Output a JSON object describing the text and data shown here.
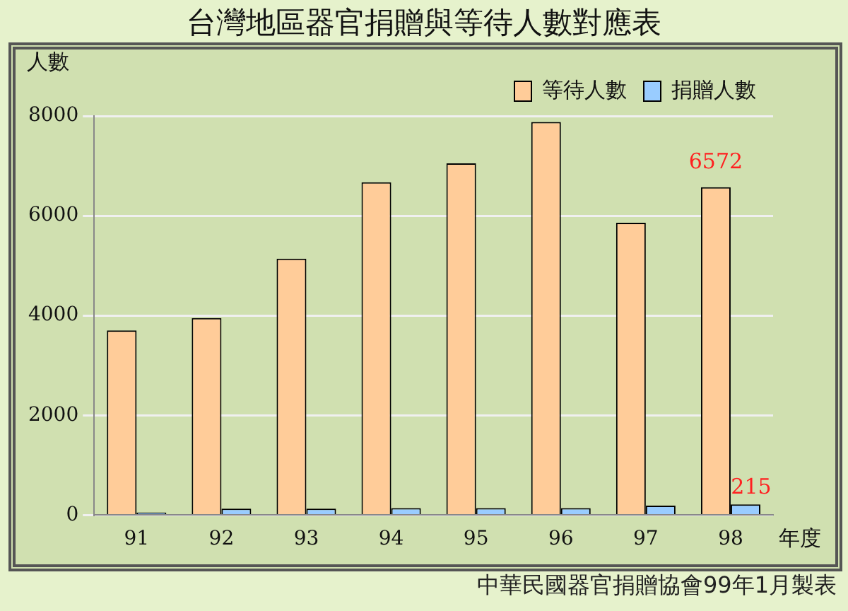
{
  "chart_data": {
    "type": "bar",
    "title": "台灣地區器官捐贈與等待人數對應表",
    "xlabel": "年度",
    "ylabel": "人數",
    "categories": [
      "91",
      "92",
      "93",
      "94",
      "95",
      "96",
      "97",
      "98"
    ],
    "series": [
      {
        "name": "等待人數",
        "color": "#ffcc99",
        "values": [
          3700,
          3950,
          5140,
          6670,
          7050,
          7880,
          5860,
          6572
        ],
        "value_labels": [
          null,
          null,
          null,
          null,
          null,
          null,
          null,
          "6572"
        ]
      },
      {
        "name": "捐贈人數",
        "color": "#99ccff",
        "values": [
          50,
          130,
          130,
          140,
          140,
          140,
          190,
          215
        ],
        "value_labels": [
          null,
          null,
          null,
          null,
          null,
          null,
          null,
          "215"
        ]
      }
    ],
    "ylim": [
      0,
      8000
    ],
    "yticks": [
      0,
      2000,
      4000,
      6000,
      8000
    ],
    "grid": "y",
    "legend": "top right",
    "annotations": [
      "中華民國器官捐贈協會99年1月製表"
    ]
  }
}
